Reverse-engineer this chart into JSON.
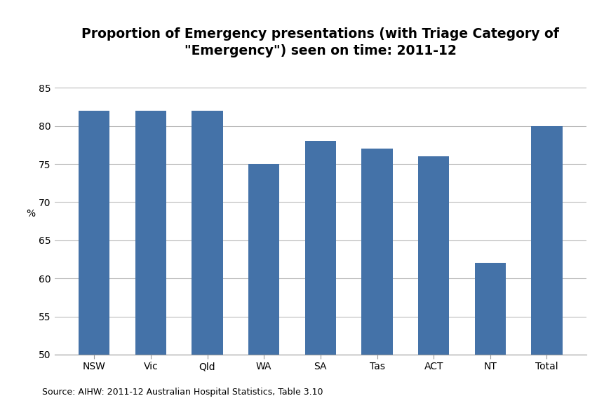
{
  "categories": [
    "NSW",
    "Vic",
    "Qld",
    "WA",
    "SA",
    "Tas",
    "ACT",
    "NT",
    "Total"
  ],
  "values": [
    82,
    82,
    82,
    75,
    78,
    77,
    76,
    62,
    80
  ],
  "bar_color": "#4472A8",
  "title": "Proportion of Emergency presentations (with Triage Category of\n\"Emergency\") seen on time: 2011-12",
  "ylabel": "%",
  "ylim": [
    50,
    87
  ],
  "yticks": [
    50,
    55,
    60,
    65,
    70,
    75,
    80,
    85
  ],
  "source_text": "Source: AIHW: 2011-12 Australian Hospital Statistics, Table 3.10",
  "background_color": "#ffffff",
  "grid_color": "#bbbbbb",
  "title_fontsize": 13.5,
  "tick_fontsize": 10,
  "source_fontsize": 9,
  "bar_width": 0.55
}
